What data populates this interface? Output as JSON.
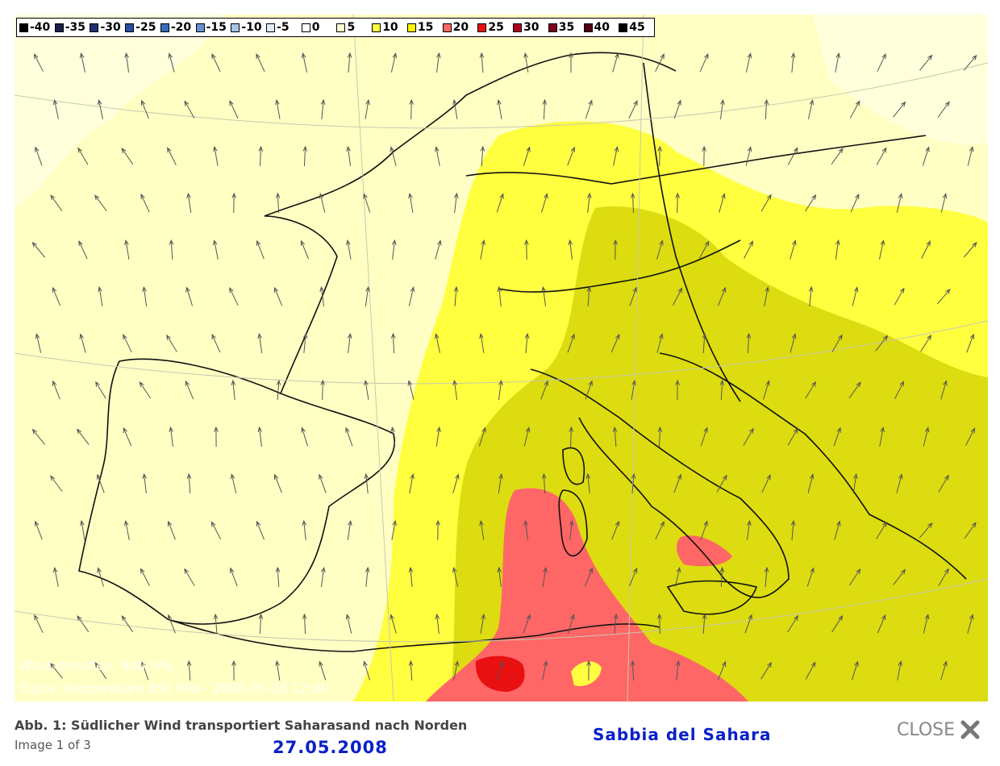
{
  "map": {
    "legend": [
      {
        "label": -40,
        "color": "#000000"
      },
      {
        "label": -35,
        "color": "#1a1f4a"
      },
      {
        "label": -30,
        "color": "#203070"
      },
      {
        "label": -25,
        "color": "#2a4ea0"
      },
      {
        "label": -20,
        "color": "#3a6cc0"
      },
      {
        "label": -15,
        "color": "#6a90d0"
      },
      {
        "label": -10,
        "color": "#a8c4e8"
      },
      {
        "label": -5,
        "color": "#e0ecf8"
      },
      {
        "label": 0,
        "color": "#ffffff"
      },
      {
        "label": 5,
        "color": "#ffffd8"
      },
      {
        "label": 10,
        "color": "#ffff40"
      },
      {
        "label": 15,
        "color": "#fff700"
      },
      {
        "label": 20,
        "color": "#ff6666"
      },
      {
        "label": 25,
        "color": "#e81010"
      },
      {
        "label": 30,
        "color": "#b00020"
      },
      {
        "label": 35,
        "color": "#800018"
      },
      {
        "label": 40,
        "color": "#500010"
      },
      {
        "label": 45,
        "color": "#000000"
      }
    ],
    "overlay_lines": [
      "Wind direction: 800 hPa",
      "Equiv. temperature 850 hPa - 2008-05-26 12:00"
    ]
  },
  "caption": "Abb. 1: Südlicher Wind transportiert Saharasand nach Norden",
  "counter": "Image 1 of 3",
  "date": "27.05.2008",
  "title": "Sabbia del Sahara",
  "close": "CLOSE"
}
